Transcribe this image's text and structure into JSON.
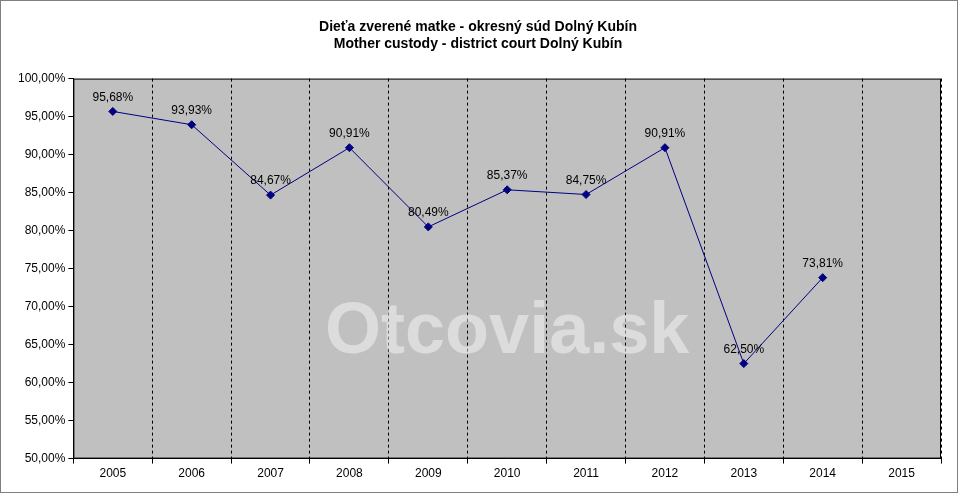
{
  "chart_data": {
    "type": "line",
    "title": [
      "Dieťa zverené matke - okresný súd Dolný Kubín",
      "Mother custody - district court Dolný Kubín"
    ],
    "watermark": "Otcovia.sk",
    "categories": [
      "2005",
      "2006",
      "2007",
      "2008",
      "2009",
      "2010",
      "2011",
      "2012",
      "2013",
      "2014",
      "2015"
    ],
    "values": [
      95.68,
      93.93,
      84.67,
      90.91,
      80.49,
      85.37,
      84.75,
      90.91,
      62.5,
      73.81,
      null
    ],
    "value_labels": [
      "95,68%",
      "93,93%",
      "84,67%",
      "90,91%",
      "80,49%",
      "85,37%",
      "84,75%",
      "90,91%",
      "62,50%",
      "73,81%",
      null
    ],
    "data_labels": true,
    "color": "#000080",
    "marker": "diamond",
    "ylim": [
      50,
      100
    ],
    "yticks": [
      {
        "value": 50,
        "label": "50,00%"
      },
      {
        "value": 55,
        "label": "55,00%"
      },
      {
        "value": 60,
        "label": "60,00%"
      },
      {
        "value": 65,
        "label": "65,00%"
      },
      {
        "value": 70,
        "label": "70,00%"
      },
      {
        "value": 75,
        "label": "75,00%"
      },
      {
        "value": 80,
        "label": "80,00%"
      },
      {
        "value": 85,
        "label": "85,00%"
      },
      {
        "value": 90,
        "label": "90,00%"
      },
      {
        "value": 95,
        "label": "95,00%"
      },
      {
        "value": 100,
        "label": "100,00%"
      }
    ],
    "grid": true
  }
}
